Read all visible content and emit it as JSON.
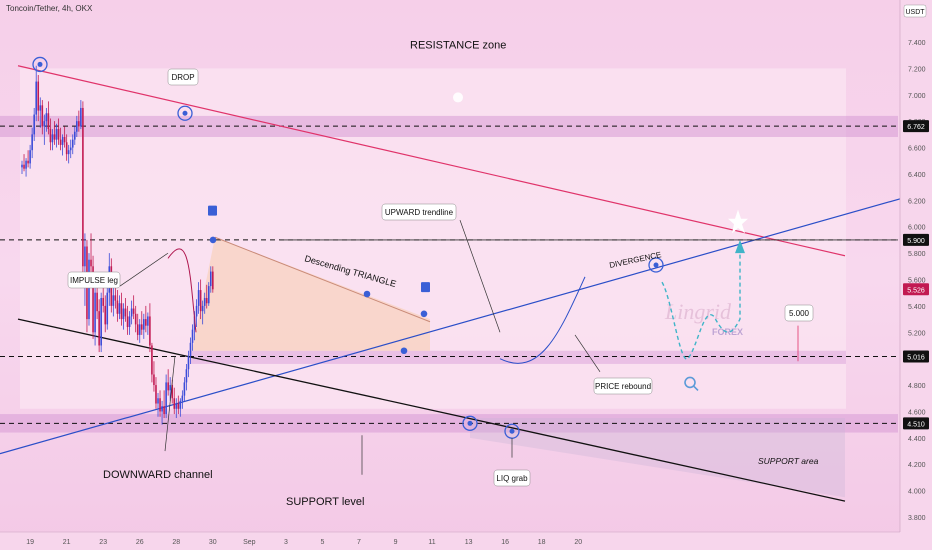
{
  "header": {
    "title": "Toncoin/Tether, 4h, OKX",
    "currency": "USDT"
  },
  "colors": {
    "bull": "#3b4bd8",
    "bear": "#c21a52",
    "resistance": "#e0336a",
    "trend": "#2a4ec8",
    "support": "#111111",
    "zone": "#d79ad6",
    "annotation_blue": "#3a5fd6"
  },
  "chart_data": {
    "type": "candlestick",
    "y_ticks": [
      3.8,
      4.0,
      4.2,
      4.4,
      4.6,
      4.8,
      5.0,
      5.2,
      5.4,
      5.6,
      5.8,
      6.0,
      6.2,
      6.4,
      6.6,
      6.8,
      7.0,
      7.2,
      7.4
    ],
    "y_tick_labels": [
      "3.800",
      "4.000",
      "4.200",
      "4.400",
      "4.600",
      "4.800",
      "5.000",
      "5.200",
      "5.400",
      "5.600",
      "5.800",
      "6.000",
      "6.200",
      "6.400",
      "6.600",
      "6.800",
      "7.000",
      "7.200",
      "7.400"
    ],
    "x_tick_labels": [
      "19",
      "21",
      "23",
      "26",
      "28",
      "30",
      "Sep",
      "3",
      "5",
      "7",
      "9",
      "11",
      "13",
      "16",
      "18",
      "20"
    ],
    "x_tick_index": [
      4,
      22,
      40,
      58,
      76,
      94,
      112,
      130,
      148,
      166,
      184,
      202,
      220,
      238,
      256,
      274
    ],
    "ylim": [
      3.72,
      7.48
    ],
    "price_levels": [
      {
        "label": "6.762",
        "value": 6.762,
        "style": "dark"
      },
      {
        "label": "5.900",
        "value": 5.9,
        "style": "dark"
      },
      {
        "label": "5.526",
        "value": 5.526,
        "style": "bear"
      },
      {
        "label": "5.016",
        "value": 5.016,
        "style": "dark"
      },
      {
        "label": "4.510",
        "value": 4.51,
        "style": "dark"
      }
    ],
    "candles": [
      [
        6.45,
        6.5,
        6.4,
        6.47
      ],
      [
        6.47,
        6.55,
        6.42,
        6.44
      ],
      [
        6.44,
        6.52,
        6.38,
        6.5
      ],
      [
        6.5,
        6.58,
        6.45,
        6.48
      ],
      [
        6.48,
        6.62,
        6.44,
        6.58
      ],
      [
        6.58,
        6.75,
        6.52,
        6.7
      ],
      [
        6.7,
        6.9,
        6.65,
        6.85
      ],
      [
        6.85,
        7.22,
        6.8,
        7.1
      ],
      [
        7.1,
        7.15,
        6.8,
        6.88
      ],
      [
        6.88,
        6.98,
        6.75,
        6.92
      ],
      [
        6.92,
        6.96,
        6.7,
        6.76
      ],
      [
        6.76,
        6.85,
        6.62,
        6.8
      ],
      [
        6.8,
        6.9,
        6.72,
        6.86
      ],
      [
        6.86,
        6.95,
        6.7,
        6.74
      ],
      [
        6.74,
        6.82,
        6.58,
        6.64
      ],
      [
        6.64,
        6.74,
        6.58,
        6.7
      ],
      [
        6.7,
        6.8,
        6.62,
        6.66
      ],
      [
        6.66,
        6.78,
        6.6,
        6.74
      ],
      [
        6.74,
        6.82,
        6.62,
        6.66
      ],
      [
        6.66,
        6.75,
        6.58,
        6.62
      ],
      [
        6.62,
        6.7,
        6.54,
        6.68
      ],
      [
        6.68,
        6.76,
        6.6,
        6.64
      ],
      [
        6.64,
        6.7,
        6.5,
        6.55
      ],
      [
        6.55,
        6.62,
        6.48,
        6.58
      ],
      [
        6.58,
        6.66,
        6.52,
        6.6
      ],
      [
        6.6,
        6.7,
        6.55,
        6.66
      ],
      [
        6.66,
        6.76,
        6.62,
        6.72
      ],
      [
        6.72,
        6.84,
        6.68,
        6.8
      ],
      [
        6.8,
        6.88,
        6.72,
        6.76
      ],
      [
        6.76,
        6.96,
        6.74,
        6.9
      ],
      [
        6.9,
        6.95,
        5.55,
        5.7
      ],
      [
        5.7,
        5.95,
        5.4,
        5.85
      ],
      [
        5.85,
        5.9,
        5.2,
        5.3
      ],
      [
        5.3,
        5.8,
        5.25,
        5.75
      ],
      [
        5.75,
        5.95,
        5.62,
        5.7
      ],
      [
        5.7,
        5.78,
        5.15,
        5.2
      ],
      [
        5.2,
        5.55,
        5.1,
        5.5
      ],
      [
        5.5,
        5.62,
        5.3,
        5.36
      ],
      [
        5.36,
        5.45,
        5.05,
        5.1
      ],
      [
        5.1,
        5.5,
        5.05,
        5.46
      ],
      [
        5.46,
        5.6,
        5.35,
        5.4
      ],
      [
        5.4,
        5.48,
        5.2,
        5.26
      ],
      [
        5.26,
        5.55,
        5.22,
        5.5
      ],
      [
        5.5,
        5.8,
        5.4,
        5.7
      ],
      [
        5.7,
        5.76,
        5.35,
        5.4
      ],
      [
        5.4,
        5.55,
        5.32,
        5.48
      ],
      [
        5.48,
        5.62,
        5.38,
        5.44
      ],
      [
        5.44,
        5.52,
        5.28,
        5.34
      ],
      [
        5.34,
        5.48,
        5.3,
        5.42
      ],
      [
        5.42,
        5.5,
        5.25,
        5.3
      ],
      [
        5.3,
        5.42,
        5.22,
        5.38
      ],
      [
        5.38,
        5.46,
        5.28,
        5.32
      ],
      [
        5.32,
        5.4,
        5.18,
        5.24
      ],
      [
        5.24,
        5.36,
        5.18,
        5.32
      ],
      [
        5.32,
        5.44,
        5.26,
        5.38
      ],
      [
        5.38,
        5.48,
        5.3,
        5.34
      ],
      [
        5.34,
        5.4,
        5.2,
        5.26
      ],
      [
        5.26,
        5.34,
        5.14,
        5.18
      ],
      [
        5.18,
        5.3,
        5.12,
        5.26
      ],
      [
        5.26,
        5.36,
        5.18,
        5.22
      ],
      [
        5.22,
        5.34,
        5.15,
        5.3
      ],
      [
        5.3,
        5.4,
        5.2,
        5.25
      ],
      [
        5.25,
        5.35,
        5.18,
        5.32
      ],
      [
        5.32,
        5.42,
        5.05,
        5.1
      ],
      [
        5.1,
        5.12,
        4.82,
        4.88
      ],
      [
        4.88,
        4.98,
        4.75,
        4.8
      ],
      [
        4.8,
        4.86,
        4.62,
        4.66
      ],
      [
        4.66,
        4.74,
        4.56,
        4.7
      ],
      [
        4.7,
        4.76,
        4.56,
        4.6
      ],
      [
        4.6,
        4.68,
        4.5,
        4.64
      ],
      [
        4.64,
        4.76,
        4.55,
        4.58
      ],
      [
        4.58,
        4.88,
        4.55,
        4.82
      ],
      [
        4.82,
        4.92,
        4.72,
        4.76
      ],
      [
        4.76,
        4.86,
        4.68,
        4.8
      ],
      [
        4.8,
        4.84,
        4.66,
        4.7
      ],
      [
        4.7,
        4.78,
        4.58,
        4.62
      ],
      [
        4.62,
        4.7,
        4.55,
        4.66
      ],
      [
        4.66,
        4.72,
        4.58,
        4.62
      ],
      [
        4.62,
        4.7,
        4.56,
        4.68
      ],
      [
        4.68,
        4.76,
        4.62,
        4.72
      ],
      [
        4.72,
        4.86,
        4.68,
        4.82
      ],
      [
        4.82,
        4.96,
        4.76,
        4.92
      ],
      [
        4.92,
        5.06,
        4.86,
        5.02
      ],
      [
        5.02,
        5.16,
        4.96,
        5.12
      ],
      [
        5.12,
        5.26,
        5.06,
        5.22
      ],
      [
        5.22,
        5.36,
        5.14,
        5.32
      ],
      [
        5.32,
        5.45,
        5.24,
        5.4
      ],
      [
        5.4,
        5.58,
        5.34,
        5.52
      ],
      [
        5.52,
        5.6,
        5.3,
        5.36
      ],
      [
        5.36,
        5.44,
        5.26,
        5.4
      ],
      [
        5.4,
        5.5,
        5.34,
        5.46
      ],
      [
        5.46,
        5.56,
        5.38,
        5.42
      ],
      [
        5.42,
        5.58,
        5.4,
        5.55
      ],
      [
        5.55,
        5.7,
        5.5,
        5.66
      ],
      [
        5.66,
        5.7,
        5.5,
        5.526
      ]
    ],
    "annotations": [
      {
        "key": "resistance_zone",
        "text": "RESISTANCE zone"
      },
      {
        "key": "drop",
        "text": "DROP"
      },
      {
        "key": "impulse",
        "text": "IMPULSE leg"
      },
      {
        "key": "desc_triangle",
        "text": "Descending TRIANGLE"
      },
      {
        "key": "upward_trendline",
        "text": "UPWARD trendline"
      },
      {
        "key": "divergence",
        "text": "DIVERGENCE"
      },
      {
        "key": "price_rebound",
        "text": "PRICE rebound"
      },
      {
        "key": "target_value",
        "text": "5.000"
      },
      {
        "key": "downward_channel",
        "text": "DOWNWARD channel"
      },
      {
        "key": "support_level",
        "text": "SUPPORT level"
      },
      {
        "key": "liq_grab",
        "text": "LIQ grab"
      },
      {
        "key": "support_area",
        "text": "SUPPORT area"
      }
    ],
    "watermark": {
      "brand": "Lingrid",
      "sub": "FOREX"
    }
  }
}
